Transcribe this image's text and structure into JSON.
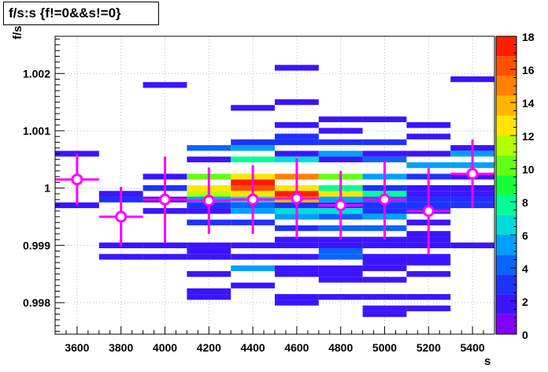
{
  "chart_data": {
    "type": "heatmap",
    "title": "f/s:s {f!=0&&s!=0}",
    "xlabel": "s",
    "ylabel": "f/s",
    "xlim": [
      3500,
      5500
    ],
    "ylim": [
      0.99745,
      1.00265
    ],
    "zlim": [
      0,
      18
    ],
    "x_bin_width": 200,
    "y_bin_width": 0.0001,
    "x_ticks": [
      3600,
      3800,
      4000,
      4200,
      4400,
      4600,
      4800,
      5000,
      5200,
      5400
    ],
    "y_ticks": [
      0.998,
      0.999,
      1,
      1.001,
      1.002
    ],
    "y_tick_labels": [
      "0.998",
      "0.999",
      "1",
      "1.001",
      "1.002"
    ],
    "z_ticks": [
      0,
      2,
      4,
      6,
      8,
      10,
      12,
      14,
      16,
      18
    ],
    "grid": true,
    "color_legend": "right",
    "cells": [
      [
        3600,
        1.0006,
        2
      ],
      [
        3600,
        0.9997,
        1.5
      ],
      [
        3800,
        0.9999,
        2
      ],
      [
        3800,
        0.9998,
        3
      ],
      [
        3800,
        0.999,
        1.5
      ],
      [
        3800,
        0.9988,
        1.5
      ],
      [
        4000,
        1.0018,
        1.5
      ],
      [
        4000,
        1.0002,
        2
      ],
      [
        4000,
        1.0,
        2.5
      ],
      [
        4000,
        0.9998,
        2
      ],
      [
        4000,
        0.9996,
        2
      ],
      [
        4000,
        0.999,
        2
      ],
      [
        4000,
        0.9988,
        2
      ],
      [
        4200,
        1.0007,
        4
      ],
      [
        4200,
        1.0005,
        2
      ],
      [
        4200,
        1.0002,
        10
      ],
      [
        4200,
        1.0,
        13
      ],
      [
        4200,
        0.9999,
        11
      ],
      [
        4200,
        0.9998,
        5
      ],
      [
        4200,
        0.9997,
        3
      ],
      [
        4200,
        0.9996,
        2
      ],
      [
        4200,
        0.9994,
        3
      ],
      [
        4200,
        0.999,
        2
      ],
      [
        4200,
        0.9989,
        2
      ],
      [
        4200,
        0.9988,
        1.5
      ],
      [
        4200,
        0.9985,
        2
      ],
      [
        4200,
        0.9982,
        1.5
      ],
      [
        4200,
        0.9981,
        1.5
      ],
      [
        4400,
        1.0014,
        1.5
      ],
      [
        4400,
        1.0008,
        2.5
      ],
      [
        4400,
        1.0007,
        5
      ],
      [
        4400,
        1.0005,
        8
      ],
      [
        4400,
        1.0002,
        12
      ],
      [
        4400,
        1.0001,
        18
      ],
      [
        4400,
        1.0,
        16
      ],
      [
        4400,
        0.9999,
        13
      ],
      [
        4400,
        0.9998,
        7
      ],
      [
        4400,
        0.9997,
        4
      ],
      [
        4400,
        0.9996,
        5
      ],
      [
        4400,
        0.9994,
        3
      ],
      [
        4400,
        0.999,
        2
      ],
      [
        4400,
        0.9988,
        2
      ],
      [
        4400,
        0.9986,
        5
      ],
      [
        4400,
        0.9983,
        1.5
      ],
      [
        4600,
        1.0021,
        1.5
      ],
      [
        4600,
        1.0015,
        1.5
      ],
      [
        4600,
        1.0011,
        1.5
      ],
      [
        4600,
        1.0009,
        2.5
      ],
      [
        4600,
        1.0008,
        3
      ],
      [
        4600,
        1.0006,
        1.5
      ],
      [
        4600,
        1.0005,
        7
      ],
      [
        4600,
        1.0002,
        15
      ],
      [
        4600,
        1.0,
        12
      ],
      [
        4600,
        0.9999,
        17
      ],
      [
        4600,
        0.9998,
        14
      ],
      [
        4600,
        0.9997,
        3
      ],
      [
        4600,
        0.9996,
        7
      ],
      [
        4600,
        0.9995,
        5
      ],
      [
        4600,
        0.9993,
        3.5
      ],
      [
        4600,
        0.9991,
        2
      ],
      [
        4600,
        0.999,
        1.5
      ],
      [
        4600,
        0.9988,
        1.5
      ],
      [
        4600,
        0.9986,
        1.5
      ],
      [
        4600,
        0.9985,
        1.5
      ],
      [
        4600,
        0.9981,
        1.5
      ],
      [
        4600,
        0.998,
        1.5
      ],
      [
        4800,
        1.0012,
        1.5
      ],
      [
        4800,
        1.001,
        1.5
      ],
      [
        4800,
        1.0008,
        2.5
      ],
      [
        4800,
        1.0006,
        5
      ],
      [
        4800,
        1.0005,
        2
      ],
      [
        4800,
        1.0002,
        10
      ],
      [
        4800,
        1.0,
        8
      ],
      [
        4800,
        0.9999,
        12
      ],
      [
        4800,
        0.9998,
        5
      ],
      [
        4800,
        0.9997,
        3
      ],
      [
        4800,
        0.9996,
        6
      ],
      [
        4800,
        0.9995,
        4
      ],
      [
        4800,
        0.9993,
        4
      ],
      [
        4800,
        0.9991,
        2
      ],
      [
        4800,
        0.999,
        2
      ],
      [
        4800,
        0.9989,
        4
      ],
      [
        4800,
        0.9988,
        4.5
      ],
      [
        4800,
        0.9986,
        2
      ],
      [
        4800,
        0.9985,
        1.5
      ],
      [
        4800,
        0.9984,
        1.5
      ],
      [
        4800,
        0.9981,
        1.5
      ],
      [
        5000,
        1.0012,
        1.5
      ],
      [
        5000,
        1.0008,
        2.5
      ],
      [
        5000,
        1.0006,
        2
      ],
      [
        5000,
        1.0005,
        4
      ],
      [
        5000,
        1.0002,
        5
      ],
      [
        5000,
        1.0,
        3
      ],
      [
        5000,
        0.9999,
        8
      ],
      [
        5000,
        0.9998,
        4
      ],
      [
        5000,
        0.9997,
        3
      ],
      [
        5000,
        0.9996,
        3
      ],
      [
        5000,
        0.9995,
        5
      ],
      [
        5000,
        0.9993,
        4
      ],
      [
        5000,
        0.9991,
        2
      ],
      [
        5000,
        0.999,
        2
      ],
      [
        5000,
        0.9988,
        2
      ],
      [
        5000,
        0.9987,
        2
      ],
      [
        5000,
        0.9986,
        2
      ],
      [
        5000,
        0.9984,
        1.5
      ],
      [
        5000,
        0.9981,
        1.5
      ],
      [
        5000,
        0.9979,
        1.5
      ],
      [
        5000,
        0.9978,
        1.5
      ],
      [
        5200,
        1.0011,
        2
      ],
      [
        5200,
        1.0009,
        1.5
      ],
      [
        5200,
        1.0006,
        1.5
      ],
      [
        5200,
        1.0004,
        5
      ],
      [
        5200,
        1.0002,
        3
      ],
      [
        5200,
        1.0,
        1.5
      ],
      [
        5200,
        0.9999,
        2
      ],
      [
        5200,
        0.9998,
        3.5
      ],
      [
        5200,
        0.9997,
        2.5
      ],
      [
        5200,
        0.9996,
        3
      ],
      [
        5200,
        0.9994,
        1.5
      ],
      [
        5200,
        0.9992,
        1.5
      ],
      [
        5200,
        0.9991,
        2
      ],
      [
        5200,
        0.999,
        2
      ],
      [
        5200,
        0.9988,
        1.5
      ],
      [
        5200,
        0.9987,
        1.5
      ],
      [
        5200,
        0.9985,
        1.5
      ],
      [
        5200,
        0.9981,
        1.5
      ],
      [
        5200,
        0.9979,
        1.5
      ],
      [
        5400,
        1.0019,
        1.5
      ],
      [
        5400,
        1.0007,
        2
      ],
      [
        5400,
        1.0006,
        5
      ],
      [
        5400,
        1.0004,
        5
      ],
      [
        5400,
        1.0002,
        2
      ],
      [
        5400,
        1.0,
        2
      ],
      [
        5400,
        0.9999,
        2
      ],
      [
        5400,
        0.9998,
        3
      ],
      [
        5400,
        0.9997,
        3
      ],
      [
        5400,
        0.999,
        2
      ]
    ],
    "profile": [
      {
        "x": 3600,
        "y": 1.00015,
        "err": 0.00045
      },
      {
        "x": 3800,
        "y": 0.9995,
        "err": 0.00052
      },
      {
        "x": 4000,
        "y": 0.9998,
        "err": 0.00075
      },
      {
        "x": 4200,
        "y": 0.99978,
        "err": 0.00058
      },
      {
        "x": 4400,
        "y": 0.9998,
        "err": 0.0006
      },
      {
        "x": 4600,
        "y": 0.99982,
        "err": 0.0007
      },
      {
        "x": 4800,
        "y": 0.9997,
        "err": 0.0006
      },
      {
        "x": 5000,
        "y": 0.9998,
        "err": 0.0007
      },
      {
        "x": 5200,
        "y": 0.9996,
        "err": 0.00075
      },
      {
        "x": 5400,
        "y": 1.00025,
        "err": 0.0006
      }
    ],
    "colors": {
      "palette": [
        "#7f00ff",
        "#3c14ff",
        "#1e32ff",
        "#0a64ff",
        "#00a0ff",
        "#00dcdc",
        "#00ff96",
        "#14ff3c",
        "#64ff14",
        "#b4ff00",
        "#ffe600",
        "#ffb400",
        "#ff8200",
        "#ff5000",
        "#ff1e00"
      ],
      "profile": "#ff00ff",
      "grid": "#bbbbbb"
    }
  }
}
